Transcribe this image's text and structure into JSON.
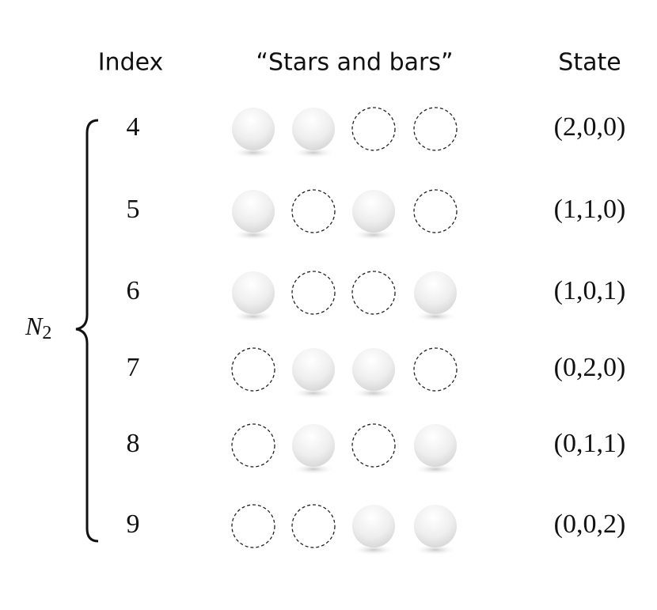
{
  "headers": {
    "index": "Index",
    "diagram": "“Stars and bars”",
    "state": "State"
  },
  "group_label": {
    "symbol": "N",
    "subscript": "2"
  },
  "rows": [
    {
      "index": 4,
      "state": "(2,0,0)"
    },
    {
      "index": 5,
      "state": "(1,1,0)"
    },
    {
      "index": 6,
      "state": "(1,0,1)"
    },
    {
      "index": 7,
      "state": "(0,2,0)"
    },
    {
      "index": 8,
      "state": "(0,1,1)"
    },
    {
      "index": 9,
      "state": "(0,0,2)"
    }
  ]
}
